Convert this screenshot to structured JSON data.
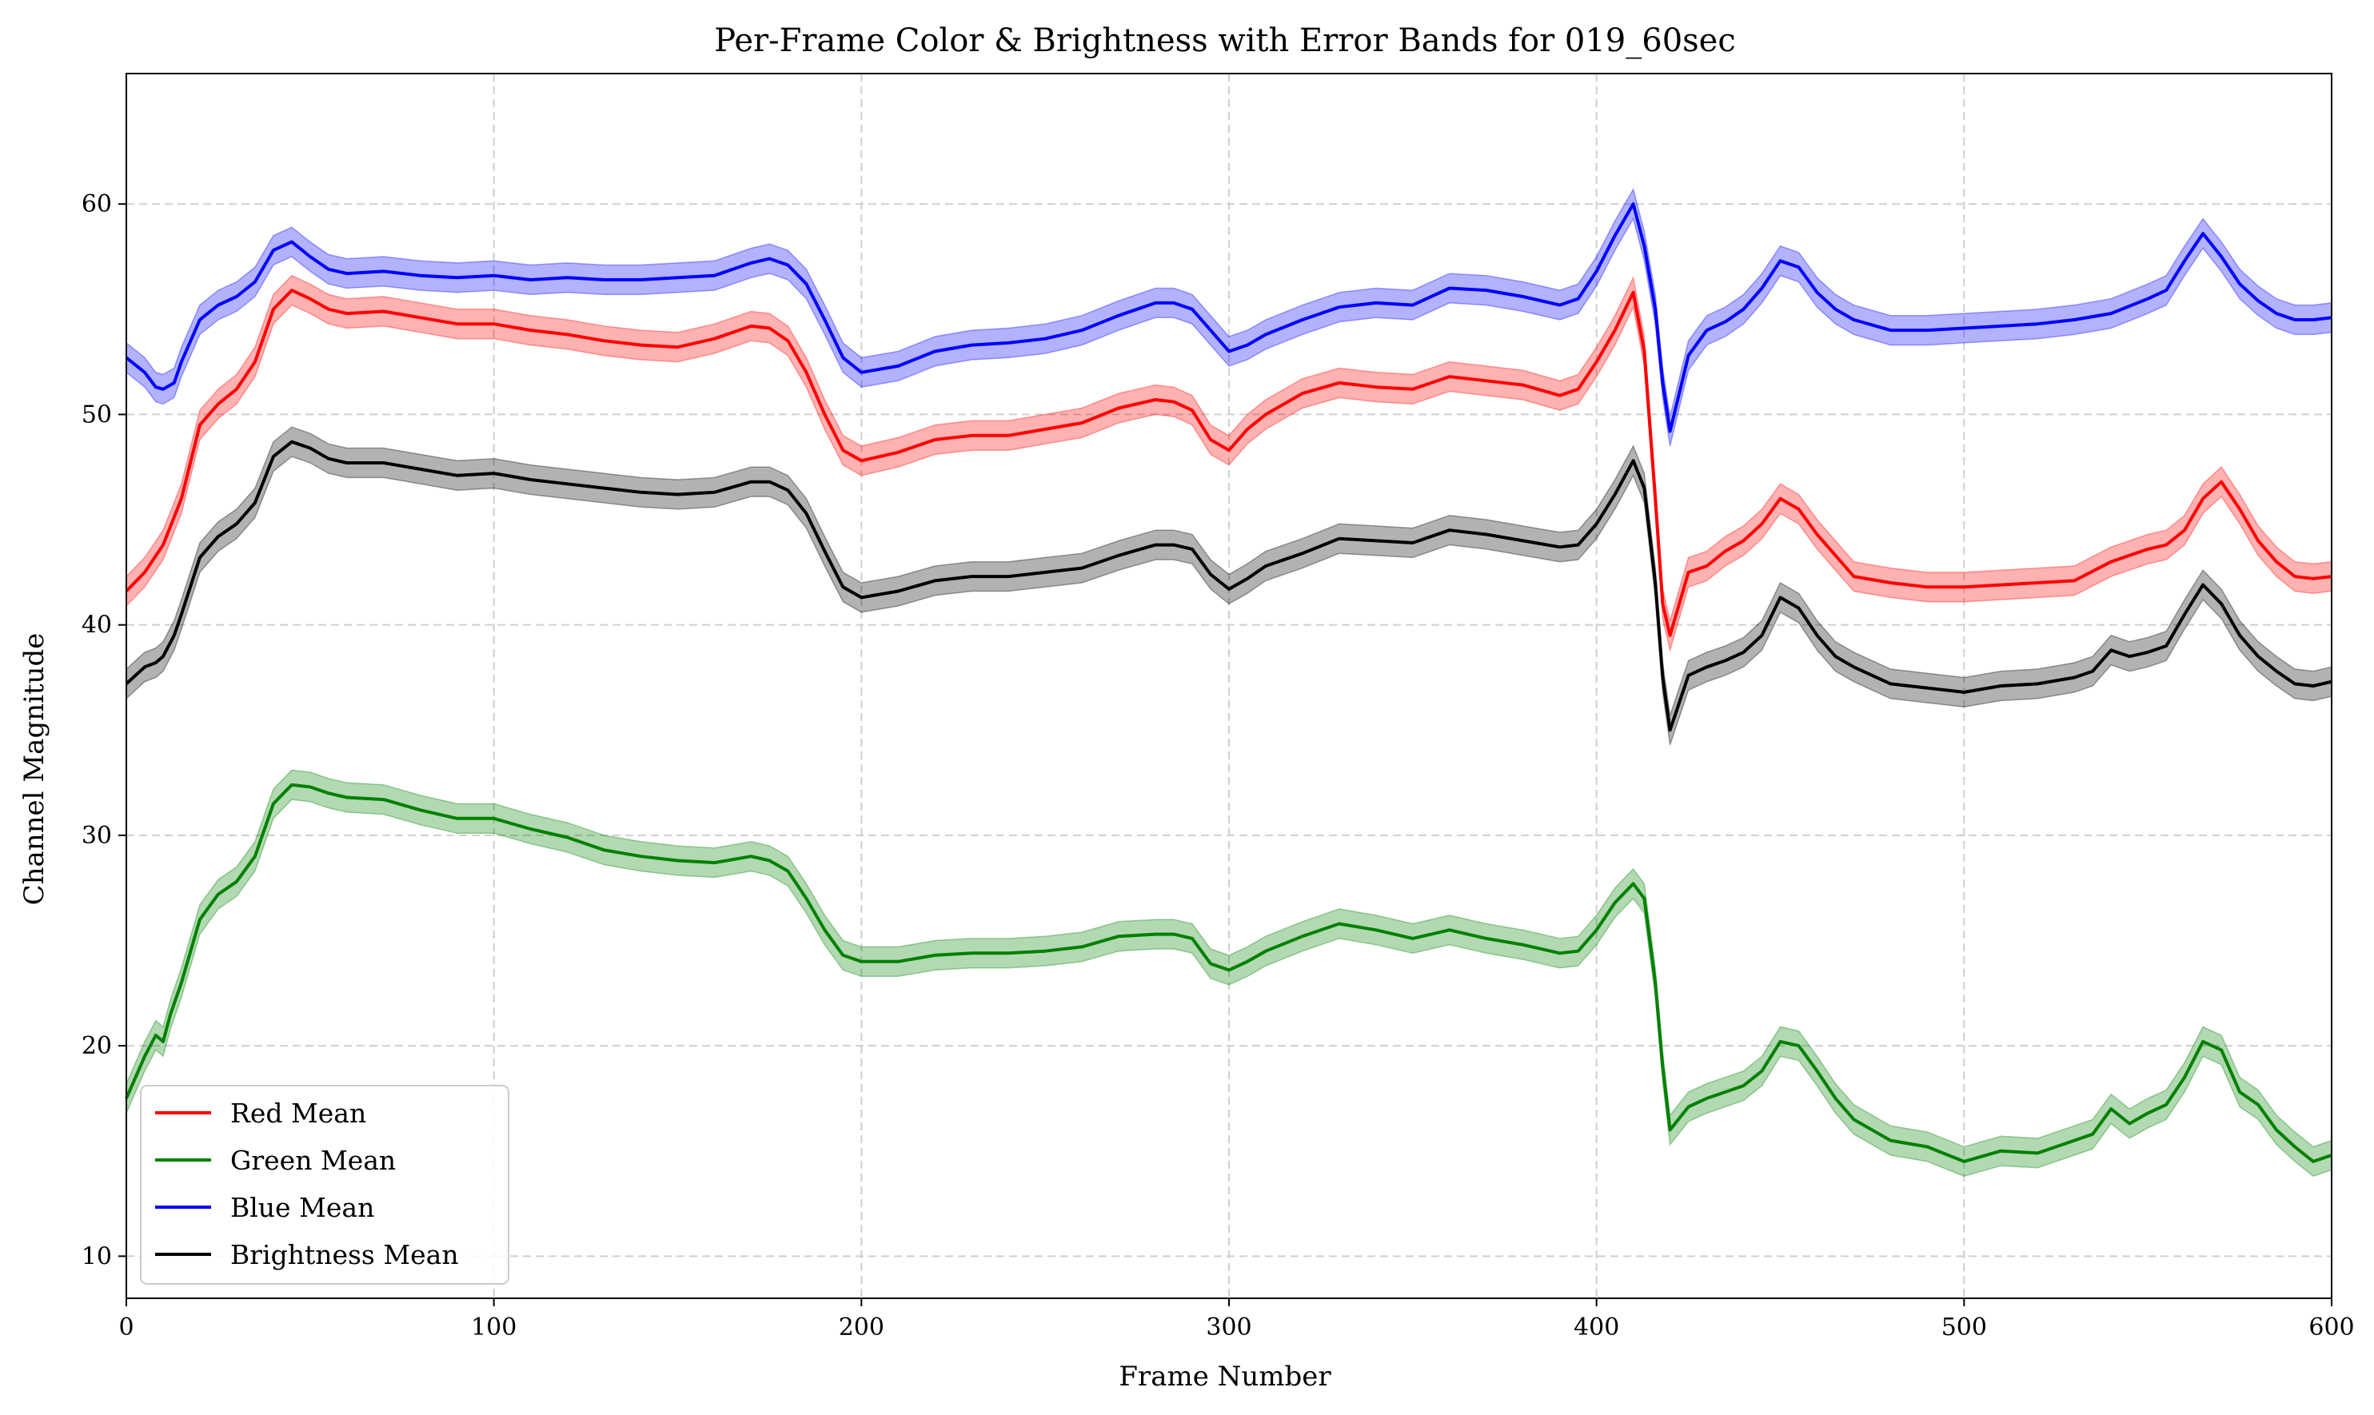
{
  "chart_data": {
    "type": "line",
    "title": "Per-Frame Color & Brightness with Error Bands for 019_60sec",
    "xlabel": "Frame Number",
    "ylabel": "Channel Magnitude",
    "xlim": [
      0,
      600
    ],
    "ylim": [
      8,
      66.2
    ],
    "xticks": [
      0,
      100,
      200,
      300,
      400,
      500,
      600
    ],
    "yticks": [
      10,
      20,
      30,
      40,
      50,
      60
    ],
    "grid": true,
    "legend_position": "lower-left",
    "band_halfwidth": 0.7,
    "series": [
      {
        "name": "Red Mean",
        "color": "#ff0000",
        "x": [
          0,
          5,
          10,
          15,
          20,
          25,
          30,
          35,
          40,
          45,
          50,
          55,
          60,
          70,
          80,
          90,
          100,
          110,
          120,
          130,
          140,
          150,
          160,
          170,
          175,
          180,
          185,
          190,
          195,
          200,
          210,
          220,
          230,
          240,
          250,
          260,
          270,
          280,
          285,
          290,
          295,
          300,
          305,
          310,
          320,
          330,
          340,
          350,
          360,
          370,
          380,
          390,
          395,
          400,
          405,
          410,
          413,
          416,
          418,
          420,
          425,
          430,
          435,
          440,
          445,
          450,
          455,
          460,
          465,
          470,
          480,
          490,
          500,
          510,
          520,
          530,
          540,
          550,
          555,
          560,
          565,
          570,
          575,
          580,
          585,
          590,
          595,
          600
        ],
        "y": [
          41.6,
          42.5,
          43.8,
          46,
          49.5,
          50.5,
          51.2,
          52.5,
          55,
          55.9,
          55.5,
          55,
          54.8,
          54.9,
          54.6,
          54.3,
          54.3,
          54,
          53.8,
          53.5,
          53.3,
          53.2,
          53.6,
          54.2,
          54.1,
          53.5,
          52,
          50,
          48.3,
          47.8,
          48.2,
          48.8,
          49,
          49,
          49.3,
          49.6,
          50.3,
          50.7,
          50.6,
          50.2,
          48.8,
          48.3,
          49.3,
          50,
          51,
          51.5,
          51.3,
          51.2,
          51.8,
          51.6,
          51.4,
          50.9,
          51.2,
          52.5,
          54,
          55.8,
          53,
          46,
          41,
          39.5,
          42.5,
          42.8,
          43.5,
          44,
          44.8,
          46,
          45.5,
          44.3,
          43.3,
          42.3,
          42,
          41.8,
          41.8,
          41.9,
          42,
          42.1,
          43,
          43.6,
          43.8,
          44.5,
          46,
          46.8,
          45.5,
          44,
          43,
          42.3,
          42.2,
          42.3
        ]
      },
      {
        "name": "Green Mean",
        "color": "#008000",
        "x": [
          0,
          5,
          8,
          10,
          12,
          15,
          20,
          25,
          30,
          35,
          40,
          45,
          50,
          55,
          60,
          70,
          80,
          90,
          100,
          110,
          120,
          130,
          140,
          150,
          160,
          170,
          175,
          180,
          185,
          190,
          195,
          200,
          210,
          220,
          230,
          240,
          250,
          260,
          270,
          280,
          285,
          290,
          295,
          300,
          305,
          310,
          320,
          330,
          340,
          350,
          360,
          370,
          380,
          390,
          395,
          400,
          405,
          410,
          413,
          416,
          418,
          420,
          425,
          430,
          435,
          440,
          445,
          450,
          455,
          460,
          465,
          470,
          480,
          490,
          500,
          510,
          520,
          530,
          535,
          540,
          545,
          550,
          555,
          560,
          565,
          570,
          575,
          580,
          585,
          590,
          595,
          600
        ],
        "y": [
          17.5,
          19.5,
          20.5,
          20.2,
          21.5,
          23,
          26,
          27.2,
          27.8,
          29,
          31.5,
          32.4,
          32.3,
          32,
          31.8,
          31.7,
          31.2,
          30.8,
          30.8,
          30.3,
          29.9,
          29.3,
          29,
          28.8,
          28.7,
          29,
          28.8,
          28.3,
          27,
          25.5,
          24.3,
          24,
          24,
          24.3,
          24.4,
          24.4,
          24.5,
          24.7,
          25.2,
          25.3,
          25.3,
          25.1,
          23.9,
          23.6,
          24,
          24.5,
          25.2,
          25.8,
          25.5,
          25.1,
          25.5,
          25.1,
          24.8,
          24.4,
          24.5,
          25.5,
          26.8,
          27.7,
          27,
          23,
          19,
          16,
          17.1,
          17.5,
          17.8,
          18.1,
          18.8,
          20.2,
          20,
          18.8,
          17.5,
          16.5,
          15.5,
          15.2,
          14.5,
          15,
          14.9,
          15.5,
          15.8,
          17,
          16.3,
          16.8,
          17.2,
          18.5,
          20.2,
          19.8,
          17.8,
          17.2,
          16,
          15.2,
          14.5,
          14.8
        ]
      },
      {
        "name": "Blue Mean",
        "color": "#0000ff",
        "x": [
          0,
          5,
          8,
          10,
          13,
          15,
          20,
          25,
          30,
          35,
          40,
          45,
          50,
          55,
          60,
          70,
          80,
          90,
          100,
          110,
          120,
          130,
          140,
          150,
          160,
          170,
          175,
          180,
          185,
          190,
          195,
          200,
          210,
          220,
          230,
          240,
          250,
          260,
          270,
          280,
          285,
          290,
          295,
          300,
          305,
          310,
          320,
          330,
          340,
          350,
          360,
          370,
          380,
          390,
          395,
          400,
          405,
          410,
          413,
          416,
          418,
          420,
          425,
          430,
          435,
          440,
          445,
          450,
          455,
          460,
          465,
          470,
          480,
          490,
          500,
          510,
          520,
          530,
          540,
          550,
          555,
          560,
          565,
          570,
          575,
          580,
          585,
          590,
          595,
          600
        ],
        "y": [
          52.7,
          52,
          51.3,
          51.2,
          51.5,
          52.5,
          54.5,
          55.2,
          55.6,
          56.3,
          57.8,
          58.2,
          57.5,
          56.9,
          56.7,
          56.8,
          56.6,
          56.5,
          56.6,
          56.4,
          56.5,
          56.4,
          56.4,
          56.5,
          56.6,
          57.2,
          57.4,
          57.1,
          56.2,
          54.5,
          52.7,
          52,
          52.3,
          53,
          53.3,
          53.4,
          53.6,
          54,
          54.7,
          55.3,
          55.3,
          55,
          54,
          53,
          53.3,
          53.8,
          54.5,
          55.1,
          55.3,
          55.2,
          56,
          55.9,
          55.6,
          55.2,
          55.5,
          56.8,
          58.5,
          60,
          58,
          55,
          51.5,
          49.2,
          52.8,
          54,
          54.4,
          55,
          56,
          57.3,
          57,
          55.8,
          55,
          54.5,
          54,
          54,
          54.1,
          54.2,
          54.3,
          54.5,
          54.8,
          55.5,
          55.9,
          57.3,
          58.6,
          57.5,
          56.2,
          55.4,
          54.8,
          54.5,
          54.5,
          54.6
        ]
      },
      {
        "name": "Brightness Mean",
        "color": "#000000",
        "x": [
          0,
          5,
          8,
          10,
          13,
          15,
          20,
          25,
          30,
          35,
          40,
          45,
          50,
          55,
          60,
          70,
          80,
          90,
          100,
          110,
          120,
          130,
          140,
          150,
          160,
          170,
          175,
          180,
          185,
          190,
          195,
          200,
          210,
          220,
          230,
          240,
          250,
          260,
          270,
          280,
          285,
          290,
          295,
          300,
          305,
          310,
          320,
          330,
          340,
          350,
          360,
          370,
          380,
          390,
          395,
          400,
          405,
          410,
          413,
          416,
          418,
          420,
          425,
          430,
          435,
          440,
          445,
          450,
          455,
          460,
          465,
          470,
          480,
          490,
          500,
          510,
          520,
          530,
          535,
          540,
          545,
          550,
          555,
          560,
          565,
          570,
          575,
          580,
          585,
          590,
          595,
          600
        ],
        "y": [
          37.2,
          38,
          38.2,
          38.5,
          39.5,
          40.5,
          43.2,
          44.2,
          44.8,
          45.8,
          48,
          48.7,
          48.4,
          47.9,
          47.7,
          47.7,
          47.4,
          47.1,
          47.2,
          46.9,
          46.7,
          46.5,
          46.3,
          46.2,
          46.3,
          46.8,
          46.8,
          46.4,
          45.3,
          43.5,
          41.8,
          41.3,
          41.6,
          42.1,
          42.3,
          42.3,
          42.5,
          42.7,
          43.3,
          43.8,
          43.8,
          43.6,
          42.4,
          41.7,
          42.2,
          42.8,
          43.4,
          44.1,
          44,
          43.9,
          44.5,
          44.3,
          44,
          43.7,
          43.8,
          44.8,
          46.2,
          47.8,
          46.5,
          42,
          37.5,
          35,
          37.6,
          38,
          38.3,
          38.7,
          39.5,
          41.3,
          40.8,
          39.5,
          38.5,
          38,
          37.2,
          37,
          36.8,
          37.1,
          37.2,
          37.5,
          37.8,
          38.8,
          38.5,
          38.7,
          39,
          40.5,
          41.9,
          41,
          39.5,
          38.5,
          37.8,
          37.2,
          37.1,
          37.3
        ]
      }
    ]
  }
}
